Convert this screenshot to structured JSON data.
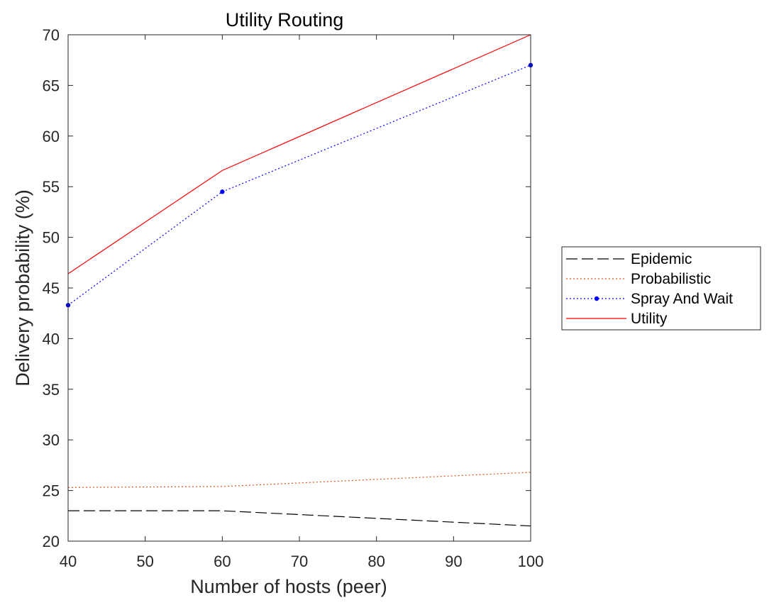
{
  "chart_data": {
    "type": "line",
    "title": "Utility Routing",
    "xlabel": "Number of hosts  (peer)",
    "ylabel": "Delivery probability (%)",
    "x": [
      40,
      60,
      100
    ],
    "xlim": [
      40,
      100
    ],
    "ylim": [
      20,
      70
    ],
    "xticks": [
      "40",
      "50",
      "60",
      "70",
      "80",
      "90",
      "100"
    ],
    "yticks": [
      "20",
      "25",
      "30",
      "35",
      "40",
      "45",
      "50",
      "55",
      "60",
      "65",
      "70"
    ],
    "grid": false,
    "legend_position": "outside right",
    "series": [
      {
        "name": "Epidemic",
        "values": [
          23.0,
          23.0,
          21.5
        ],
        "color": "#000000",
        "line_style": "dashed",
        "marker": "none"
      },
      {
        "name": "Probabilistic",
        "values": [
          25.3,
          25.4,
          26.8
        ],
        "color": "#d95319",
        "line_style": "dotted",
        "marker": "none"
      },
      {
        "name": "Spray And Wait",
        "values": [
          43.3,
          54.5,
          67.0
        ],
        "color": "#0000ff",
        "line_style": "dotted",
        "marker": "dot"
      },
      {
        "name": "Utility",
        "values": [
          46.4,
          56.6,
          70.0
        ],
        "color": "#ff0000",
        "line_style": "solid",
        "marker": "none"
      }
    ]
  }
}
